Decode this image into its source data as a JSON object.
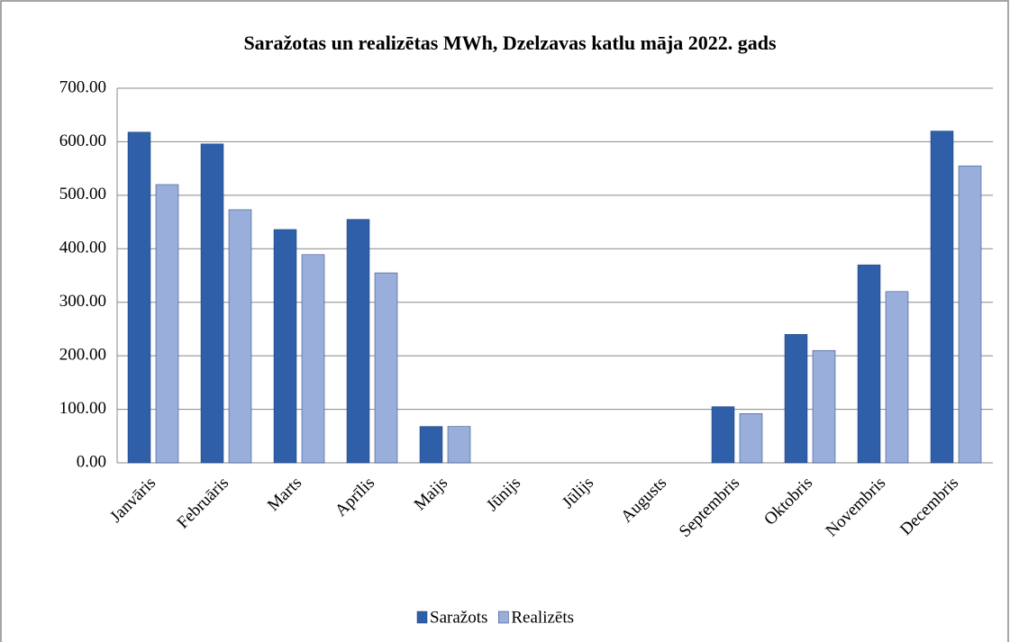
{
  "chart_data": {
    "type": "bar",
    "title": "Saražotas un realizētas MWh, Dzelzavas katlu māja 2022. gads",
    "categories": [
      "Janvāris",
      "Februāris",
      "Marts",
      "Aprīlis",
      "Maijs",
      "Jūnijs",
      "Jūlijs",
      "Augusts",
      "Septembris",
      "Oktobris",
      "Novembris",
      "Decembris"
    ],
    "series": [
      {
        "name": "Saražots",
        "color": "#2e5fa8",
        "values": [
          618,
          596,
          436,
          455,
          68,
          0,
          0,
          0,
          105,
          240,
          370,
          620
        ]
      },
      {
        "name": "Realizēts",
        "color": "#9aaedc",
        "values": [
          520,
          473,
          389,
          355,
          68,
          0,
          0,
          0,
          92,
          210,
          320,
          555
        ]
      }
    ],
    "ylim": [
      0,
      700
    ],
    "yticks": [
      {
        "value": 0,
        "label": "0.00"
      },
      {
        "value": 100,
        "label": "100.00"
      },
      {
        "value": 200,
        "label": "200.00"
      },
      {
        "value": 300,
        "label": "300.00"
      },
      {
        "value": 400,
        "label": "400.00"
      },
      {
        "value": 500,
        "label": "500.00"
      },
      {
        "value": 600,
        "label": "600.00"
      },
      {
        "value": 700,
        "label": "700.00"
      }
    ],
    "grid": true,
    "legend": "bottom"
  }
}
